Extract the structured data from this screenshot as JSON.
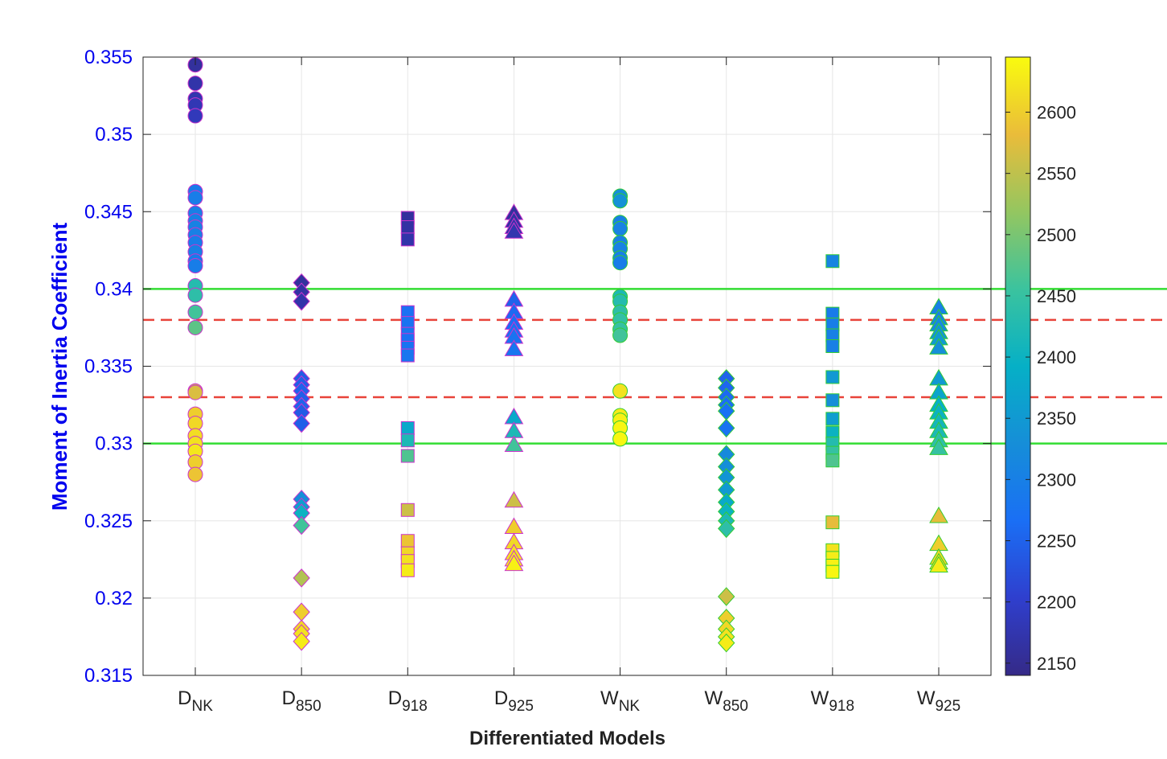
{
  "chart_data": {
    "type": "scatter",
    "xlabel": "Differentiated Models",
    "ylabel": "Moment of Inertia Coefficient",
    "ylim": [
      0.315,
      0.355
    ],
    "yticks": [
      "0.315",
      "0.32",
      "0.325",
      "0.33",
      "0.335",
      "0.34",
      "0.345",
      "0.35",
      "0.355"
    ],
    "grid": true,
    "categories": [
      {
        "base": "D",
        "sub": "NK"
      },
      {
        "base": "D",
        "sub": "850"
      },
      {
        "base": "D",
        "sub": "918"
      },
      {
        "base": "D",
        "sub": "925"
      },
      {
        "base": "W",
        "sub": "NK"
      },
      {
        "base": "W",
        "sub": "850"
      },
      {
        "base": "W",
        "sub": "918"
      },
      {
        "base": "W",
        "sub": "925"
      }
    ],
    "reference_lines": [
      {
        "y": 0.34,
        "style": "solid",
        "color": "#33dd33"
      },
      {
        "y": 0.33,
        "style": "solid",
        "color": "#33dd33"
      },
      {
        "y": 0.338,
        "style": "dashed",
        "color": "#e8433a"
      },
      {
        "y": 0.333,
        "style": "dashed",
        "color": "#e8433a"
      }
    ],
    "colorbar": {
      "range": [
        2140,
        2645
      ],
      "ticks": [
        2150,
        2200,
        2250,
        2300,
        2350,
        2400,
        2450,
        2500,
        2550,
        2600
      ],
      "colormap": "parula"
    },
    "series": [
      {
        "category": 0,
        "marker": "circle",
        "edge": "#cc33cc",
        "points": [
          [
            0.3545,
            2160
          ],
          [
            0.3533,
            2170
          ],
          [
            0.3523,
            2175
          ],
          [
            0.3519,
            2180
          ],
          [
            0.3512,
            2185
          ],
          [
            0.3463,
            2290
          ],
          [
            0.3459,
            2295
          ],
          [
            0.3449,
            2300
          ],
          [
            0.3444,
            2300
          ],
          [
            0.344,
            2305
          ],
          [
            0.3435,
            2300
          ],
          [
            0.343,
            2295
          ],
          [
            0.3424,
            2300
          ],
          [
            0.3418,
            2290
          ],
          [
            0.3415,
            2295
          ],
          [
            0.3402,
            2430
          ],
          [
            0.3396,
            2440
          ],
          [
            0.3385,
            2460
          ],
          [
            0.3375,
            2480
          ],
          [
            0.3334,
            2560
          ],
          [
            0.3333,
            2570
          ],
          [
            0.3319,
            2600
          ],
          [
            0.3313,
            2610
          ],
          [
            0.3305,
            2615
          ],
          [
            0.33,
            2620
          ],
          [
            0.3295,
            2625
          ],
          [
            0.3288,
            2600
          ],
          [
            0.328,
            2590
          ]
        ]
      },
      {
        "category": 1,
        "marker": "diamond",
        "edge": "#cc33cc",
        "points": [
          [
            0.3404,
            2160
          ],
          [
            0.3398,
            2165
          ],
          [
            0.3392,
            2170
          ],
          [
            0.3342,
            2240
          ],
          [
            0.3338,
            2245
          ],
          [
            0.3334,
            2250
          ],
          [
            0.3329,
            2245
          ],
          [
            0.3324,
            2250
          ],
          [
            0.332,
            2240
          ],
          [
            0.3313,
            2245
          ],
          [
            0.3264,
            2330
          ],
          [
            0.3259,
            2360
          ],
          [
            0.3255,
            2400
          ],
          [
            0.3247,
            2460
          ],
          [
            0.3213,
            2540
          ],
          [
            0.3191,
            2600
          ],
          [
            0.318,
            2610
          ],
          [
            0.3177,
            2620
          ],
          [
            0.3172,
            2630
          ]
        ]
      },
      {
        "category": 2,
        "marker": "square",
        "edge": "#cc33cc",
        "points": [
          [
            0.3446,
            2160
          ],
          [
            0.344,
            2165
          ],
          [
            0.3432,
            2170
          ],
          [
            0.3385,
            2270
          ],
          [
            0.3378,
            2275
          ],
          [
            0.3371,
            2280
          ],
          [
            0.3367,
            2270
          ],
          [
            0.3362,
            2275
          ],
          [
            0.3357,
            2280
          ],
          [
            0.331,
            2380
          ],
          [
            0.3302,
            2420
          ],
          [
            0.3292,
            2470
          ],
          [
            0.3257,
            2560
          ],
          [
            0.3237,
            2590
          ],
          [
            0.3229,
            2610
          ],
          [
            0.3224,
            2620
          ],
          [
            0.3218,
            2630
          ]
        ]
      },
      {
        "category": 3,
        "marker": "triangle",
        "edge": "#cc33cc",
        "points": [
          [
            0.3449,
            2160
          ],
          [
            0.3444,
            2165
          ],
          [
            0.344,
            2170
          ],
          [
            0.3437,
            2175
          ],
          [
            0.3393,
            2250
          ],
          [
            0.3385,
            2260
          ],
          [
            0.3378,
            2265
          ],
          [
            0.3373,
            2270
          ],
          [
            0.3369,
            2275
          ],
          [
            0.3361,
            2280
          ],
          [
            0.3317,
            2380
          ],
          [
            0.3308,
            2420
          ],
          [
            0.3299,
            2460
          ],
          [
            0.3263,
            2560
          ],
          [
            0.3246,
            2600
          ],
          [
            0.3236,
            2610
          ],
          [
            0.3229,
            2620
          ],
          [
            0.3225,
            2630
          ],
          [
            0.3222,
            2635
          ]
        ]
      },
      {
        "category": 4,
        "marker": "circle",
        "edge": "#33cc33",
        "points": [
          [
            0.346,
            2330
          ],
          [
            0.3457,
            2335
          ],
          [
            0.3443,
            2300
          ],
          [
            0.3439,
            2305
          ],
          [
            0.343,
            2300
          ],
          [
            0.3426,
            2305
          ],
          [
            0.342,
            2300
          ],
          [
            0.3417,
            2295
          ],
          [
            0.3395,
            2420
          ],
          [
            0.3392,
            2430
          ],
          [
            0.3385,
            2440
          ],
          [
            0.338,
            2445
          ],
          [
            0.3374,
            2450
          ],
          [
            0.337,
            2460
          ],
          [
            0.3334,
            2620
          ],
          [
            0.3318,
            2630
          ],
          [
            0.3315,
            2635
          ],
          [
            0.331,
            2640
          ],
          [
            0.3303,
            2640
          ]
        ]
      },
      {
        "category": 5,
        "marker": "diamond",
        "edge": "#33cc33",
        "points": [
          [
            0.3342,
            2250
          ],
          [
            0.3336,
            2255
          ],
          [
            0.333,
            2260
          ],
          [
            0.3325,
            2265
          ],
          [
            0.3321,
            2270
          ],
          [
            0.331,
            2275
          ],
          [
            0.3293,
            2320
          ],
          [
            0.3285,
            2330
          ],
          [
            0.3278,
            2340
          ],
          [
            0.327,
            2350
          ],
          [
            0.3262,
            2380
          ],
          [
            0.3256,
            2400
          ],
          [
            0.325,
            2420
          ],
          [
            0.3245,
            2440
          ],
          [
            0.3201,
            2560
          ],
          [
            0.3187,
            2600
          ],
          [
            0.318,
            2610
          ],
          [
            0.3175,
            2620
          ],
          [
            0.3171,
            2630
          ]
        ]
      },
      {
        "category": 6,
        "marker": "square",
        "edge": "#33cc33",
        "points": [
          [
            0.3418,
            2310
          ],
          [
            0.3384,
            2290
          ],
          [
            0.3377,
            2295
          ],
          [
            0.337,
            2300
          ],
          [
            0.3363,
            2300
          ],
          [
            0.3343,
            2350
          ],
          [
            0.3328,
            2330
          ],
          [
            0.3316,
            2360
          ],
          [
            0.3307,
            2400
          ],
          [
            0.33,
            2430
          ],
          [
            0.3294,
            2450
          ],
          [
            0.3289,
            2470
          ],
          [
            0.3249,
            2580
          ],
          [
            0.3231,
            2620
          ],
          [
            0.3226,
            2630
          ],
          [
            0.3221,
            2635
          ],
          [
            0.3217,
            2640
          ]
        ]
      },
      {
        "category": 7,
        "marker": "triangle",
        "edge": "#33cc33",
        "points": [
          [
            0.3388,
            2300
          ],
          [
            0.3381,
            2310
          ],
          [
            0.3377,
            2320
          ],
          [
            0.3372,
            2340
          ],
          [
            0.3368,
            2350
          ],
          [
            0.3362,
            2330
          ],
          [
            0.3342,
            2350
          ],
          [
            0.3333,
            2370
          ],
          [
            0.3325,
            2390
          ],
          [
            0.332,
            2400
          ],
          [
            0.3314,
            2410
          ],
          [
            0.3308,
            2420
          ],
          [
            0.3302,
            2440
          ],
          [
            0.3297,
            2450
          ],
          [
            0.3253,
            2580
          ],
          [
            0.3235,
            2600
          ],
          [
            0.3226,
            2610
          ],
          [
            0.3223,
            2620
          ],
          [
            0.3221,
            2630
          ]
        ]
      }
    ]
  }
}
